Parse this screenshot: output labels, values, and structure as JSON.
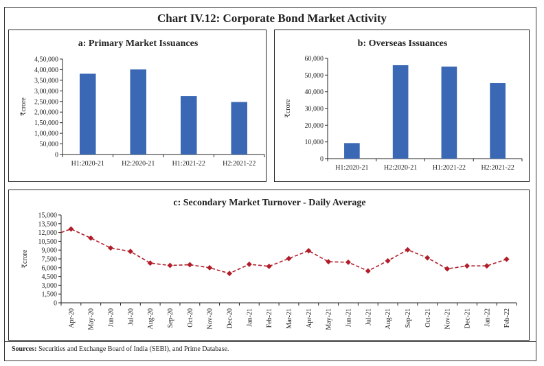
{
  "main_title": "Chart IV.12: Corporate Bond Market Activity",
  "sources_label": "Sources:",
  "sources_text": " Securities and Exchange Board of India (SEBI), and Prime Database.",
  "colors": {
    "bar": "#3a68b4",
    "line": "#b01e2a"
  },
  "chart_data": [
    {
      "id": "a",
      "type": "bar",
      "title": "a: Primary Market Issuances",
      "ylabel": "₹crore",
      "xlabel": "",
      "categories": [
        "H1:2020-21",
        "H2:2020-21",
        "H1:2021-22",
        "H2:2021-22"
      ],
      "values": [
        380800,
        401000,
        275000,
        247500
      ],
      "ylim": [
        0,
        450000
      ],
      "yticks": [
        0,
        50000,
        100000,
        150000,
        200000,
        250000,
        300000,
        350000,
        400000,
        450000
      ],
      "ytick_labels": [
        "0",
        "50,000",
        "1,00,000",
        "1,50,000",
        "2,00,000",
        "2,50,000",
        "3,00,000",
        "3,50,000",
        "4,00,000",
        "4,50,000"
      ],
      "grid": false,
      "legend": "none"
    },
    {
      "id": "b",
      "type": "bar",
      "title": "b: Overseas Issuances",
      "ylabel": "₹crore",
      "xlabel": "",
      "categories": [
        "H1:2020-21",
        "H2:2020-21",
        "H1:2021-22",
        "H2:2021-22"
      ],
      "values": [
        9300,
        55900,
        55100,
        45200
      ],
      "ylim": [
        0,
        60000
      ],
      "yticks": [
        0,
        10000,
        20000,
        30000,
        40000,
        50000,
        60000
      ],
      "ytick_labels": [
        "0",
        "10,000",
        "20,000",
        "30,000",
        "40,000",
        "50,000",
        "60,000"
      ],
      "grid": false,
      "legend": "none"
    },
    {
      "id": "c",
      "type": "line",
      "title": "c: Secondary Market Turnover - Daily Average",
      "ylabel": "₹crore",
      "xlabel": "",
      "categories": [
        "Apr-20",
        "May-20",
        "Jun-20",
        "Jul-20",
        "Aug-20",
        "Sep-20",
        "Oct-20",
        "Nov-20",
        "Dec-20",
        "Jan-21",
        "Feb-21",
        "Mar-21",
        "Apr-21",
        "May-21",
        "Jun-21",
        "Jul-21",
        "Aug-21",
        "Sep-21",
        "Oct-21",
        "Nov-21",
        "Dec-21",
        "Jan-22",
        "Feb-22"
      ],
      "values": [
        12600,
        11050,
        9360,
        8770,
        6780,
        6380,
        6500,
        5990,
        5010,
        6580,
        6230,
        7560,
        8890,
        7010,
        6930,
        5440,
        7170,
        9050,
        7680,
        5800,
        6300,
        6300,
        7440
      ],
      "entry_value": 12000,
      "ylim": [
        0,
        15000
      ],
      "yticks": [
        0,
        1500,
        3000,
        4500,
        6000,
        7500,
        9000,
        10500,
        12000,
        13500,
        15000
      ],
      "ytick_labels": [
        "0",
        "1,500",
        "3,000",
        "4,500",
        "6,000",
        "7,500",
        "9,000",
        "10,500",
        "12,000",
        "13,500",
        "15,000"
      ],
      "grid": false,
      "legend": "none",
      "line_style": "dashed",
      "marker": "diamond"
    }
  ]
}
